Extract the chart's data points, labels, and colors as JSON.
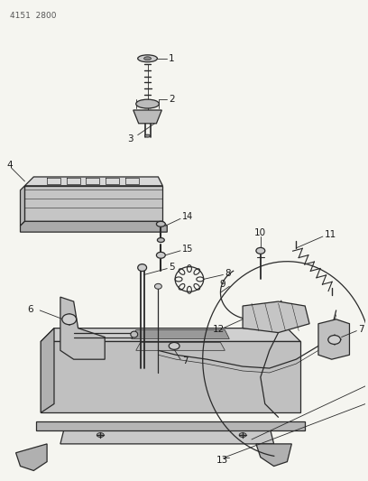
{
  "part_number": "4151  2800",
  "background_color": "#f5f5f0",
  "line_color": "#2a2a2a",
  "fig_width": 4.08,
  "fig_height": 5.33,
  "dpi": 100
}
